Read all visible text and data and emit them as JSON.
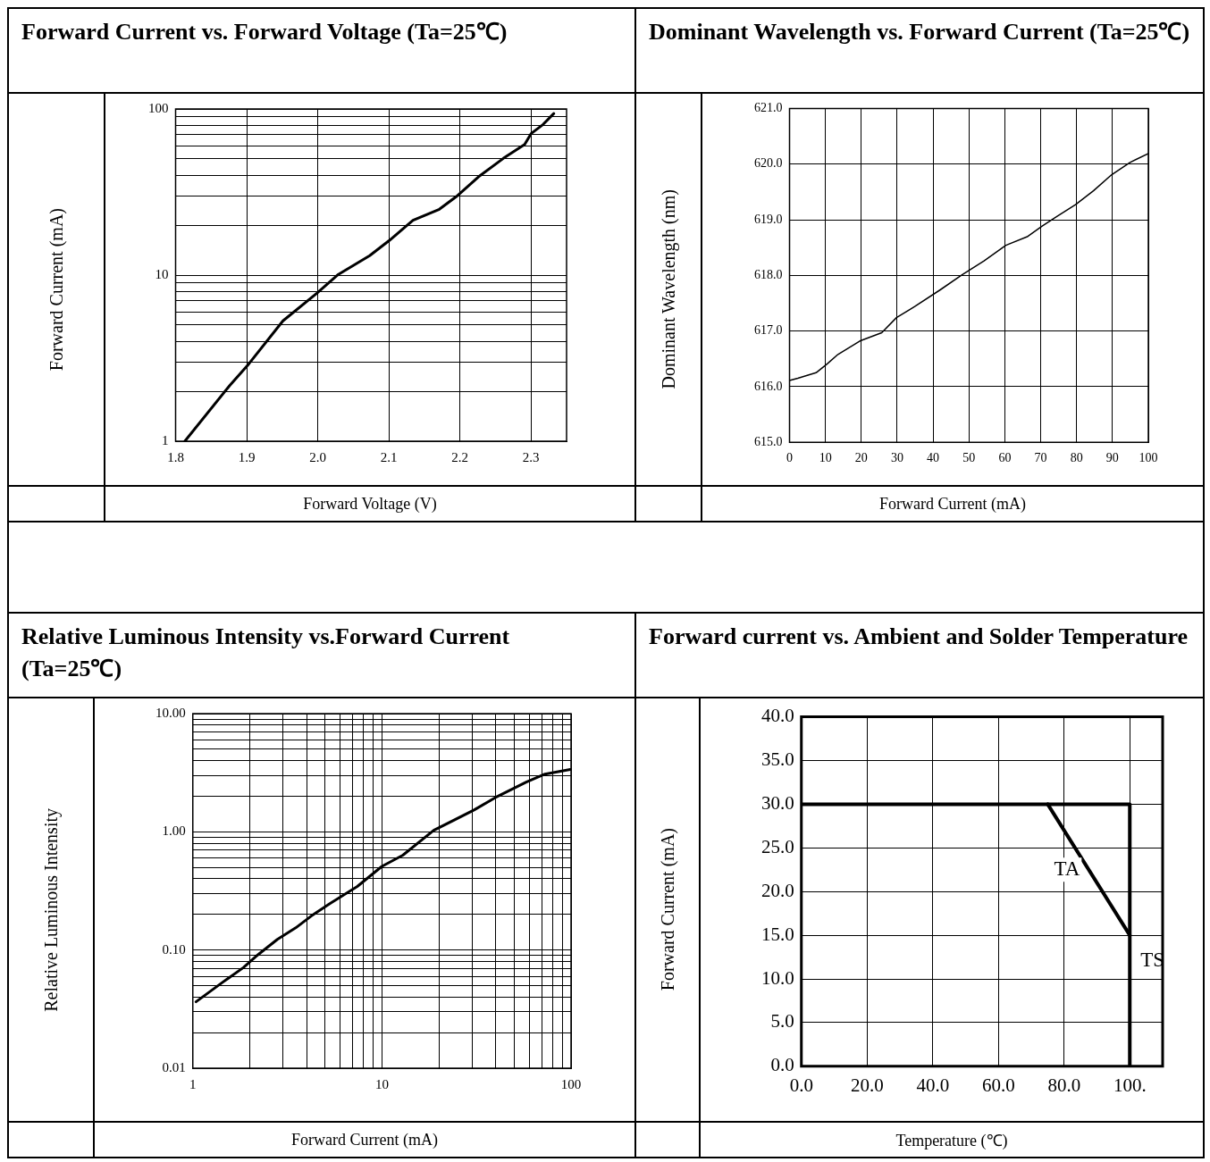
{
  "chart_data": [
    {
      "type": "line",
      "title": "Forward Current vs. Forward Voltage (Ta=25℃)",
      "xlabel": "Forward Voltage (V)",
      "ylabel": "Forward Current (mA)",
      "log": "y",
      "grid": true,
      "marker": "none",
      "xlim": [
        1.8,
        2.35
      ],
      "ylim": [
        1,
        100
      ],
      "xticks": [
        1.8,
        1.9,
        {
          "value": 2.0,
          "label": "2.0"
        },
        2.1,
        2.2,
        2.3
      ],
      "yticks": [
        1,
        {
          "value": 2,
          "label": null
        },
        {
          "value": 3,
          "label": null
        },
        {
          "value": 4,
          "label": null
        },
        {
          "value": 5,
          "label": null
        },
        {
          "value": 6,
          "label": null
        },
        {
          "value": 7,
          "label": null
        },
        {
          "value": 8,
          "label": null
        },
        {
          "value": 9,
          "label": null
        },
        10,
        {
          "value": 20,
          "label": null
        },
        {
          "value": 30,
          "label": null
        },
        {
          "value": 40,
          "label": null
        },
        {
          "value": 50,
          "label": null
        },
        {
          "value": 60,
          "label": null
        },
        {
          "value": 70,
          "label": null
        },
        {
          "value": 80,
          "label": null
        },
        {
          "value": 90,
          "label": null
        },
        100
      ],
      "series": [
        {
          "color": "#000000",
          "x": [
            1.813,
            1.876,
            1.903,
            1.951,
            1.999,
            2.029,
            2.073,
            2.101,
            2.134,
            2.171,
            2.195,
            2.226,
            2.261,
            2.291,
            2.3,
            2.317,
            2.332
          ],
          "values": [
            1,
            2.16,
            2.92,
            5.3,
            7.8,
            10.1,
            13.1,
            16.2,
            21.4,
            24.9,
            29.7,
            39,
            50.4,
            61.1,
            71,
            80.7,
            93.8
          ]
        }
      ]
    },
    {
      "type": "line",
      "title": "Dominant Wavelength vs. Forward Current (Ta=25℃)",
      "xlabel": "Forward Current (mA)",
      "ylabel": "Dominant Wavelength (nm)",
      "grid": true,
      "marker": "none",
      "xlim": [
        0,
        100
      ],
      "ylim": [
        615,
        621
      ],
      "xticks": [
        0,
        10,
        20,
        30,
        40,
        50,
        60,
        70,
        80,
        90,
        100
      ],
      "yticks": [
        {
          "value": 615,
          "label": "615.0"
        },
        {
          "value": 616,
          "label": "616.0"
        },
        {
          "value": 617,
          "label": "617.0"
        },
        {
          "value": 618,
          "label": "618.0"
        },
        {
          "value": 619,
          "label": "619.0"
        },
        {
          "value": 620,
          "label": "620.0"
        },
        {
          "value": 621,
          "label": "621.0"
        }
      ],
      "series": [
        {
          "color": "#000000",
          "x": [
            0,
            2.3,
            7.4,
            10.5,
            13.5,
            19.6,
            25.7,
            29.8,
            34.9,
            42,
            48.1,
            54.2,
            60.3,
            66.4,
            70.5,
            74.5,
            79.7,
            84.7,
            89.8,
            94.9,
            100
          ],
          "values": [
            616.11,
            616.15,
            616.25,
            616.41,
            616.58,
            616.82,
            616.97,
            617.24,
            617.44,
            617.74,
            618.01,
            618.26,
            618.54,
            618.7,
            618.89,
            619.06,
            619.27,
            619.52,
            619.81,
            620.03,
            620.19
          ]
        }
      ]
    },
    {
      "type": "line",
      "title": "Relative Luminous Intensity vs.Forward Current (Ta=25℃)",
      "xlabel": "Forward Current (mA)",
      "ylabel": "Relative Luminous Intensity",
      "log": "xy",
      "grid": true,
      "marker": "none",
      "xlim": [
        1,
        100
      ],
      "ylim": [
        0.01,
        10
      ],
      "xticks": [
        1,
        {
          "value": 2,
          "label": null
        },
        {
          "value": 3,
          "label": null
        },
        {
          "value": 4,
          "label": null
        },
        {
          "value": 5,
          "label": null
        },
        {
          "value": 6,
          "label": null
        },
        {
          "value": 7,
          "label": null
        },
        {
          "value": 8,
          "label": null
        },
        {
          "value": 9,
          "label": null
        },
        10,
        {
          "value": 20,
          "label": null
        },
        {
          "value": 30,
          "label": null
        },
        {
          "value": 40,
          "label": null
        },
        {
          "value": 50,
          "label": null
        },
        {
          "value": 60,
          "label": null
        },
        {
          "value": 70,
          "label": null
        },
        {
          "value": 80,
          "label": null
        },
        {
          "value": 90,
          "label": null
        },
        100
      ],
      "yticks": [
        {
          "value": 0.01,
          "label": "0.01"
        },
        {
          "value": 0.02,
          "label": null
        },
        {
          "value": 0.03,
          "label": null
        },
        {
          "value": 0.04,
          "label": null
        },
        {
          "value": 0.05,
          "label": null
        },
        {
          "value": 0.06,
          "label": null
        },
        {
          "value": 0.07,
          "label": null
        },
        {
          "value": 0.08,
          "label": null
        },
        {
          "value": 0.09,
          "label": null
        },
        {
          "value": 0.1,
          "label": "0.10"
        },
        {
          "value": 0.2,
          "label": null
        },
        {
          "value": 0.3,
          "label": null
        },
        {
          "value": 0.4,
          "label": null
        },
        {
          "value": 0.5,
          "label": null
        },
        {
          "value": 0.6,
          "label": null
        },
        {
          "value": 0.7,
          "label": null
        },
        {
          "value": 0.8,
          "label": null
        },
        {
          "value": 0.9,
          "label": null
        },
        {
          "value": 1,
          "label": "1.00"
        },
        {
          "value": 2,
          "label": null
        },
        {
          "value": 3,
          "label": null
        },
        {
          "value": 4,
          "label": null
        },
        {
          "value": 5,
          "label": null
        },
        {
          "value": 6,
          "label": null
        },
        {
          "value": 7,
          "label": null
        },
        {
          "value": 8,
          "label": null
        },
        {
          "value": 9,
          "label": null
        },
        {
          "value": 10,
          "label": "10.00"
        }
      ],
      "series": [
        {
          "color": "#000000",
          "x": [
            1.04,
            1.43,
            1.85,
            2.15,
            2.8,
            3.5,
            4.23,
            5.3,
            7.41,
            10,
            12.9,
            18.8,
            30.7,
            39.8,
            58,
            72.8,
            99
          ],
          "values": [
            0.0365,
            0.053,
            0.071,
            0.088,
            0.123,
            0.154,
            0.194,
            0.247,
            0.345,
            0.51,
            0.634,
            1.03,
            1.53,
            1.95,
            2.64,
            3.08,
            3.37
          ]
        }
      ]
    },
    {
      "type": "line",
      "title": "Forward current vs. Ambient and Solder Temperature",
      "xlabel": "Temperature (℃)",
      "ylabel": "Forward Current (mA)",
      "grid": true,
      "marker": "none",
      "xlim": [
        0,
        110
      ],
      "ylim": [
        0,
        40
      ],
      "xticks": [
        {
          "value": 0,
          "label": "0.0"
        },
        {
          "value": 20,
          "label": "20.0"
        },
        {
          "value": 40,
          "label": "40.0"
        },
        {
          "value": 60,
          "label": "60.0"
        },
        {
          "value": 80,
          "label": "80.0"
        },
        {
          "value": 100,
          "label": "100."
        }
      ],
      "yticks": [
        {
          "value": 0,
          "label": "0.0"
        },
        {
          "value": 5,
          "label": "5.0"
        },
        {
          "value": 10,
          "label": "10.0"
        },
        {
          "value": 15,
          "label": "15.0"
        },
        {
          "value": 20,
          "label": "20.0"
        },
        {
          "value": 25,
          "label": "25.0"
        },
        {
          "value": 30,
          "label": "30.0"
        },
        {
          "value": 35,
          "label": "35.0"
        },
        {
          "value": 40,
          "label": "40.0"
        }
      ],
      "series": [
        {
          "name": "TA",
          "color": "#000000",
          "x": [
            75,
            100
          ],
          "values": [
            30,
            15
          ]
        },
        {
          "name": "TS",
          "color": "#000000",
          "x": [
            0,
            100,
            100
          ],
          "values": [
            30,
            30,
            0
          ]
        }
      ]
    }
  ]
}
